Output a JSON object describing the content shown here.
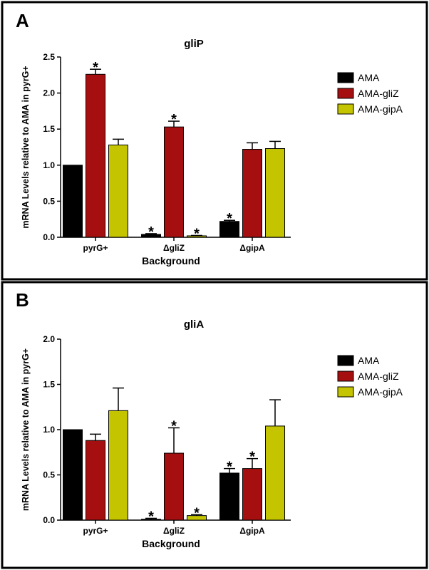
{
  "chart_data": [
    {
      "panel": "A",
      "type": "bar",
      "title": "gliP",
      "xlabel": "Background",
      "ylabel": "mRNA Levels relative to AMA in pyrG+",
      "ylim": [
        0,
        2.5
      ],
      "yticks": [
        "0.0",
        "0.5",
        "1.0",
        "1.5",
        "2.0",
        "2.5"
      ],
      "categories": [
        "pyrG+",
        "ΔgliZ",
        "ΔgipA"
      ],
      "legend": "right",
      "series": [
        {
          "name": "AMA",
          "color": "#000000",
          "values": [
            1.0,
            0.04,
            0.22
          ],
          "errors": [
            0,
            0.01,
            0.015
          ],
          "significant": [
            false,
            true,
            true
          ]
        },
        {
          "name": "AMA-gliZ",
          "color": "#a50f0f",
          "values": [
            2.26,
            1.53,
            1.22
          ],
          "errors": [
            0.07,
            0.08,
            0.09
          ],
          "significant": [
            true,
            true,
            false
          ]
        },
        {
          "name": "AMA-gipA",
          "color": "#c4c400",
          "values": [
            1.28,
            0.02,
            1.23
          ],
          "errors": [
            0.08,
            0.005,
            0.1
          ],
          "significant": [
            false,
            true,
            false
          ]
        }
      ]
    },
    {
      "panel": "B",
      "type": "bar",
      "title": "gliA",
      "xlabel": "Background",
      "ylabel": "mRNA Levels relative to AMA in pyrG+",
      "ylim": [
        0,
        2.0
      ],
      "yticks": [
        "0.0",
        "0.5",
        "1.0",
        "1.5",
        "2.0"
      ],
      "categories": [
        "pyrG+",
        "ΔgliZ",
        "ΔgipA"
      ],
      "legend": "right",
      "series": [
        {
          "name": "AMA",
          "color": "#000000",
          "values": [
            1.0,
            0.01,
            0.52
          ],
          "errors": [
            0,
            0.01,
            0.05
          ],
          "significant": [
            false,
            true,
            true
          ]
        },
        {
          "name": "AMA-gliZ",
          "color": "#a50f0f",
          "values": [
            0.88,
            0.74,
            0.57
          ],
          "errors": [
            0.07,
            0.28,
            0.11
          ],
          "significant": [
            false,
            true,
            true
          ]
        },
        {
          "name": "AMA-gipA",
          "color": "#c4c400",
          "values": [
            1.21,
            0.05,
            1.04
          ],
          "errors": [
            0.25,
            0.01,
            0.29
          ],
          "significant": [
            false,
            true,
            false
          ]
        }
      ]
    }
  ],
  "star_symbol": "*"
}
